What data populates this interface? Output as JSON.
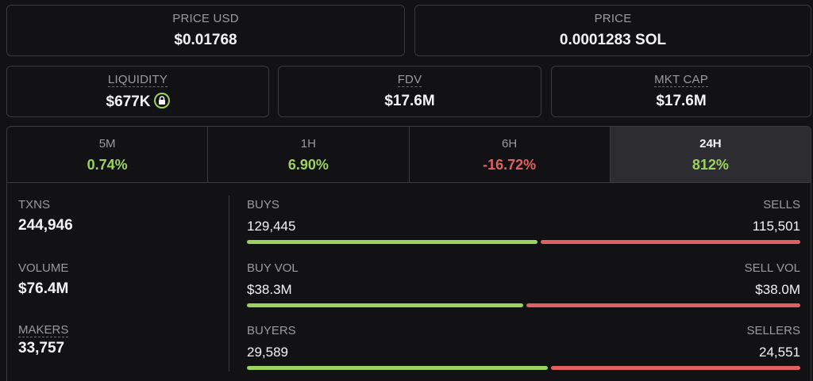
{
  "price_usd": {
    "label": "PRICE USD",
    "value": "$0.01768"
  },
  "price_sol": {
    "label": "PRICE",
    "value": "0.0001283 SOL"
  },
  "liquidity": {
    "label": "LIQUIDITY",
    "value": "$677K",
    "icon": "lock-icon",
    "icon_color": "#9bd260"
  },
  "fdv": {
    "label": "FDV",
    "value": "$17.6M"
  },
  "mkt_cap": {
    "label": "MKT CAP",
    "value": "$17.6M"
  },
  "timeframes": [
    {
      "label": "5M",
      "value": "0.74%",
      "trend": "up"
    },
    {
      "label": "1H",
      "value": "6.90%",
      "trend": "up"
    },
    {
      "label": "6H",
      "value": "-16.72%",
      "trend": "down"
    },
    {
      "label": "24H",
      "value": "812%",
      "trend": "up",
      "active": true
    }
  ],
  "txns": {
    "label": "TXNS",
    "value": "244,946"
  },
  "volume": {
    "label": "VOLUME",
    "value": "$76.4M"
  },
  "makers": {
    "label": "MAKERS",
    "value": "33,757"
  },
  "buys_sells": {
    "left_label": "BUYS",
    "left_value": "129,445",
    "right_label": "SELLS",
    "right_value": "115,501",
    "buy_fraction": 0.528
  },
  "vol_split": {
    "left_label": "BUY VOL",
    "left_value": "$38.3M",
    "right_label": "SELL VOL",
    "right_value": "$38.0M",
    "buy_fraction": 0.502
  },
  "buyers_sellers": {
    "left_label": "BUYERS",
    "left_value": "29,589",
    "right_label": "SELLERS",
    "right_value": "24,551",
    "buy_fraction": 0.547
  },
  "colors": {
    "positive": "#9bd260",
    "negative": "#e0615f",
    "background": "#121214",
    "border": "#3a3a3f"
  }
}
